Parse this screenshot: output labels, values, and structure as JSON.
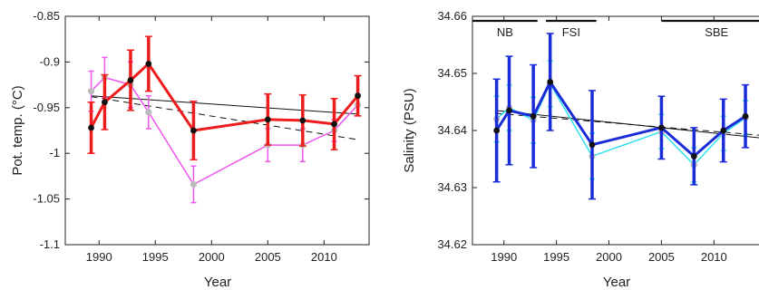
{
  "chart_data": [
    {
      "type": "line",
      "ylabel": "Pot. temp. (°C)",
      "xlabel": "Year",
      "xlim": [
        1987,
        2014
      ],
      "ylim": [
        -1.1,
        -0.85
      ],
      "xticks": [
        "1990",
        "1995",
        "2000",
        "2005",
        "2010"
      ],
      "yticks": [
        "-0.85",
        "-0.9",
        "-0.95",
        "-1",
        "-1.05",
        "-1.1"
      ],
      "grid": false,
      "series": [
        {
          "color": "#ee1c1c",
          "marker_color": "#111111",
          "x": [
            1989.3,
            1990.5,
            1992.8,
            1994.4,
            1998.4,
            2005.0,
            2008.1,
            2010.9,
            2013.0
          ],
          "y": [
            -0.972,
            -0.944,
            -0.92,
            -0.902,
            -0.975,
            -0.963,
            -0.964,
            -0.968,
            -0.937
          ],
          "err": [
            0.028,
            0.03,
            0.033,
            0.03,
            0.032,
            0.028,
            0.028,
            0.028,
            0.022
          ]
        },
        {
          "color": "#ee55ee",
          "marker_color": "#bbbbbb",
          "x": [
            1989.3,
            1990.5,
            1992.8,
            1994.4,
            1998.4,
            2005.0,
            2008.1,
            2010.9,
            2013.0
          ],
          "y": [
            -0.932,
            -0.917,
            -0.925,
            -0.955,
            -1.034,
            -0.991,
            -0.991,
            -0.975,
            -0.947
          ],
          "err": [
            0.022,
            0.022,
            0.025,
            0.018,
            0.02,
            0.018,
            0.018,
            0.012,
            0.012
          ]
        }
      ],
      "trends": [
        {
          "style": "solid",
          "x": [
            1989.3,
            2013.0
          ],
          "y": [
            -0.937,
            -0.957
          ]
        },
        {
          "style": "dashed",
          "x": [
            1989.3,
            2013.0
          ],
          "y": [
            -0.938,
            -0.985
          ]
        }
      ]
    },
    {
      "type": "line",
      "ylabel": "Salinity (PSU)",
      "xlabel": "Year",
      "xlim": [
        1987,
        2015.5
      ],
      "ylim": [
        34.62,
        34.66
      ],
      "xticks": [
        "1990",
        "1995",
        "2000",
        "2005",
        "2010"
      ],
      "yticks": [
        "34.66",
        "34.65",
        "34.64",
        "34.63",
        "34.62"
      ],
      "grid": false,
      "periods": [
        {
          "label": "NB",
          "x": [
            1987.0,
            1993.2
          ]
        },
        {
          "label": "FSI",
          "x": [
            1994.0,
            1998.8
          ]
        },
        {
          "label": "SBE",
          "x": [
            2005.0,
            2015.5
          ]
        }
      ],
      "series": [
        {
          "color": "#1a2cd8",
          "marker_color": "#111111",
          "x": [
            1989.3,
            1990.5,
            1992.8,
            1994.4,
            1998.4,
            2005.0,
            2008.1,
            2010.9,
            2013.0
          ],
          "y": [
            34.64,
            34.6435,
            34.6425,
            34.6485,
            34.6375,
            34.6405,
            34.6355,
            34.64,
            34.6425
          ],
          "err": [
            0.009,
            0.0095,
            0.009,
            0.0085,
            0.0095,
            0.0055,
            0.005,
            0.0055,
            0.0055
          ]
        },
        {
          "color": "#2fe0f0",
          "marker_color": "#bbbbbb",
          "x": [
            1989.3,
            1990.5,
            1992.8,
            1994.4,
            1998.4,
            2005.0,
            2008.1,
            2010.9,
            2013.0
          ],
          "y": [
            34.642,
            34.644,
            34.6418,
            34.6482,
            34.6355,
            34.6398,
            34.634,
            34.6395,
            34.6422
          ],
          "err": [
            0.004,
            0.004,
            0.004,
            0.004,
            0.004,
            0.003,
            0.003,
            0.003,
            0.003
          ]
        }
      ],
      "trends": [
        {
          "style": "solid",
          "x": [
            1989.3,
            2015.5
          ],
          "y": [
            34.6435,
            34.6385
          ]
        },
        {
          "style": "dashed",
          "x": [
            1989.3,
            2015.5
          ],
          "y": [
            34.643,
            34.639
          ]
        }
      ]
    }
  ]
}
